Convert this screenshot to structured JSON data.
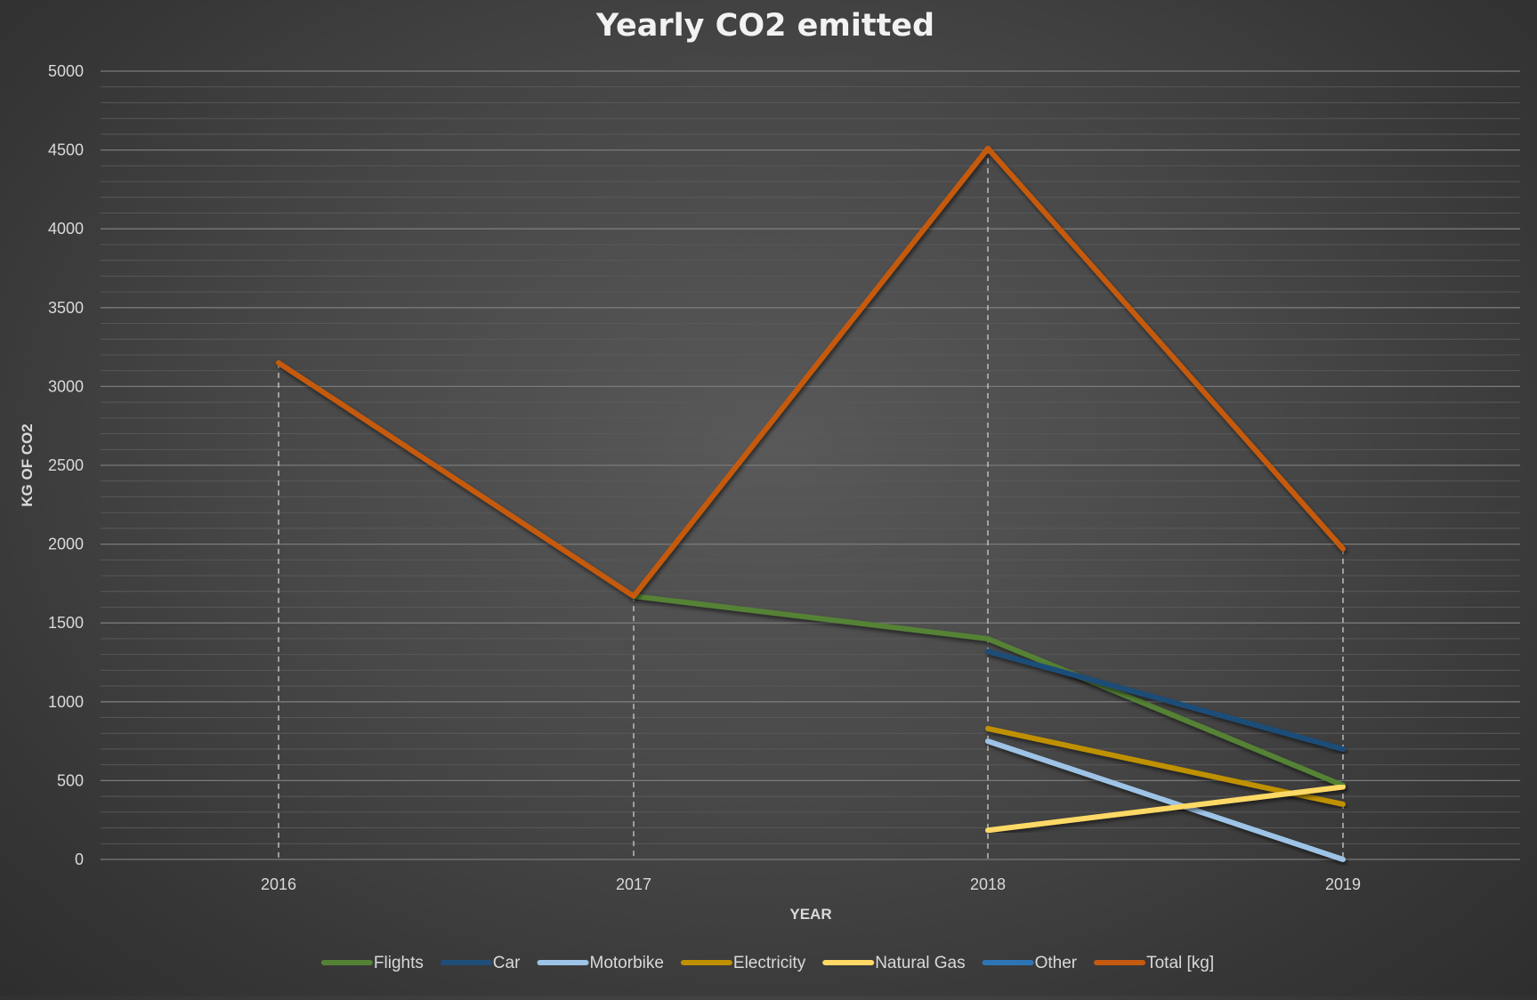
{
  "chart_data": {
    "type": "line",
    "title": "Yearly CO2 emitted",
    "xlabel": "YEAR",
    "ylabel": "KG OF CO2",
    "categories": [
      "2016",
      "2017",
      "2018",
      "2019"
    ],
    "ylim": [
      0,
      5000
    ],
    "yticks": [
      "0",
      "500",
      "1000",
      "1500",
      "2000",
      "2500",
      "3000",
      "3500",
      "4000",
      "4500",
      "5000"
    ],
    "grid": true,
    "minor_grid": true,
    "drop_lines": true,
    "legend_position": "bottom",
    "series": [
      {
        "name": "Flights",
        "color": "#548235",
        "values": [
          null,
          1670,
          1400,
          470
        ]
      },
      {
        "name": "Car",
        "color": "#1f4e79",
        "values": [
          null,
          null,
          1320,
          700
        ]
      },
      {
        "name": "Motorbike",
        "color": "#9dc3e6",
        "values": [
          null,
          null,
          750,
          0
        ]
      },
      {
        "name": "Electricity",
        "color": "#bf9000",
        "values": [
          null,
          null,
          830,
          350
        ]
      },
      {
        "name": "Natural Gas",
        "color": "#ffd966",
        "values": [
          null,
          null,
          185,
          460
        ]
      },
      {
        "name": "Other",
        "color": "#2e75b6",
        "values": [
          null,
          null,
          null,
          null
        ]
      },
      {
        "name": "Total [kg]",
        "color": "#c55a11",
        "values": [
          3150,
          1670,
          4510,
          1970
        ]
      }
    ]
  }
}
